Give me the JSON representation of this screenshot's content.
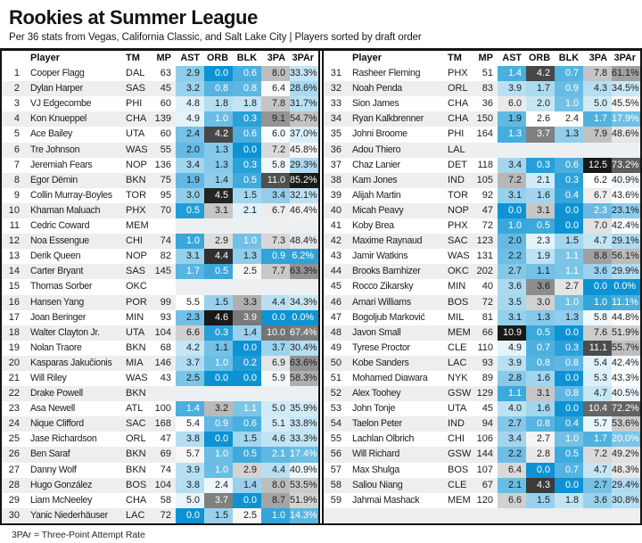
{
  "chart_data": {
    "type": "table",
    "title": "Rookies at Summer League",
    "subtitle": "Per 36 stats from Vegas, California Classic, and Salt Lake City | Players sorted by draft order",
    "footnote": "3PAr = Three-Point Attempt Rate",
    "columns": [
      "Player",
      "TM",
      "MP",
      "AST",
      "ORB",
      "BLK",
      "3PA",
      "3PAr"
    ],
    "rows_per_panel": 30,
    "players": [
      [
        1,
        "Cooper Flagg",
        "DAL",
        63,
        2.9,
        0.0,
        0.6,
        8.0,
        33.3
      ],
      [
        2,
        "Dylan Harper",
        "SAS",
        45,
        3.2,
        0.8,
        0.8,
        6.4,
        28.6
      ],
      [
        3,
        "VJ Edgecombe",
        "PHI",
        60,
        4.8,
        1.8,
        1.8,
        7.8,
        31.7
      ],
      [
        4,
        "Kon Knueppel",
        "CHA",
        139,
        4.9,
        1.0,
        0.3,
        9.1,
        54.7
      ],
      [
        5,
        "Ace Bailey",
        "UTA",
        60,
        2.4,
        4.2,
        0.6,
        6.0,
        37.0
      ],
      [
        6,
        "Tre Johnson",
        "WAS",
        55,
        2.0,
        1.3,
        0.0,
        7.2,
        45.8
      ],
      [
        7,
        "Jeremiah Fears",
        "NOP",
        136,
        3.4,
        1.3,
        0.3,
        5.8,
        29.3
      ],
      [
        8,
        "Egor Dëmin",
        "BKN",
        75,
        1.9,
        1.4,
        0.5,
        11.0,
        85.2
      ],
      [
        9,
        "Collin Murray-Boyles",
        "TOR",
        95,
        3.0,
        4.5,
        1.5,
        3.4,
        32.1
      ],
      [
        10,
        "Khaman Maluach",
        "PHX",
        70,
        0.5,
        3.1,
        2.1,
        6.7,
        46.4
      ],
      [
        11,
        "Cedric Coward",
        "MEM",
        null,
        null,
        null,
        null,
        null,
        null
      ],
      [
        12,
        "Noa Essengue",
        "CHI",
        74,
        1.0,
        2.9,
        1.0,
        7.3,
        48.4
      ],
      [
        13,
        "Derik Queen",
        "NOP",
        82,
        3.1,
        4.4,
        1.3,
        0.9,
        6.2
      ],
      [
        14,
        "Carter Bryant",
        "SAS",
        145,
        1.7,
        0.5,
        2.5,
        7.7,
        63.3
      ],
      [
        15,
        "Thomas Sorber",
        "OKC",
        null,
        null,
        null,
        null,
        null,
        null
      ],
      [
        16,
        "Hansen Yang",
        "POR",
        99,
        5.5,
        1.5,
        3.3,
        4.4,
        34.3
      ],
      [
        17,
        "Joan Beringer",
        "MIN",
        93,
        2.3,
        4.6,
        3.9,
        0.0,
        0.0
      ],
      [
        18,
        "Walter Clayton Jr.",
        "UTA",
        104,
        6.6,
        0.3,
        1.4,
        10.0,
        67.4
      ],
      [
        19,
        "Nolan Traore",
        "BKN",
        68,
        4.2,
        1.1,
        0.0,
        3.7,
        30.4
      ],
      [
        20,
        "Kasparas Jakučionis",
        "MIA",
        146,
        3.7,
        1.0,
        0.2,
        6.9,
        63.6
      ],
      [
        21,
        "Will Riley",
        "WAS",
        43,
        2.5,
        0.0,
        0.0,
        5.9,
        58.3
      ],
      [
        22,
        "Drake Powell",
        "BKN",
        null,
        null,
        null,
        null,
        null,
        null
      ],
      [
        23,
        "Asa Newell",
        "ATL",
        100,
        1.4,
        3.2,
        1.1,
        5.0,
        35.9
      ],
      [
        24,
        "Nique Clifford",
        "SAC",
        168,
        5.4,
        0.9,
        0.6,
        5.1,
        33.8
      ],
      [
        25,
        "Jase Richardson",
        "ORL",
        47,
        3.8,
        0.0,
        1.5,
        4.6,
        33.3
      ],
      [
        26,
        "Ben Saraf",
        "BKN",
        69,
        5.7,
        1.0,
        0.5,
        2.1,
        17.4
      ],
      [
        27,
        "Danny Wolf",
        "BKN",
        74,
        3.9,
        1.0,
        2.9,
        4.4,
        40.9
      ],
      [
        28,
        "Hugo González",
        "BOS",
        104,
        3.8,
        2.4,
        1.4,
        8.0,
        53.5
      ],
      [
        29,
        "Liam McNeeley",
        "CHA",
        58,
        5.0,
        3.7,
        0.0,
        8.7,
        51.9
      ],
      [
        30,
        "Yanic Niederhäuser",
        "LAC",
        72,
        0.0,
        1.5,
        2.5,
        1.0,
        14.3
      ],
      [
        31,
        "Rasheer Fleming",
        "PHX",
        51,
        1.4,
        4.2,
        0.7,
        7.8,
        61.1
      ],
      [
        32,
        "Noah Penda",
        "ORL",
        83,
        3.9,
        1.7,
        0.9,
        4.3,
        34.5
      ],
      [
        33,
        "Sion James",
        "CHA",
        36,
        6.0,
        2.0,
        1.0,
        5.0,
        45.5
      ],
      [
        34,
        "Ryan Kalkbrenner",
        "CHA",
        150,
        1.9,
        2.6,
        2.4,
        1.7,
        17.9
      ],
      [
        35,
        "Johni Broome",
        "PHI",
        164,
        1.3,
        3.7,
        1.3,
        7.9,
        48.6
      ],
      [
        36,
        "Adou Thiero",
        "LAL",
        null,
        null,
        null,
        null,
        null,
        null
      ],
      [
        37,
        "Chaz Lanier",
        "DET",
        118,
        3.4,
        0.3,
        0.6,
        12.5,
        73.2
      ],
      [
        38,
        "Kam Jones",
        "IND",
        105,
        7.2,
        2.1,
        0.3,
        6.2,
        40.9
      ],
      [
        39,
        "Alijah Martin",
        "TOR",
        92,
        3.1,
        1.6,
        0.4,
        6.7,
        43.6
      ],
      [
        40,
        "Micah Peavy",
        "NOP",
        47,
        0.0,
        3.1,
        0.0,
        2.3,
        23.1
      ],
      [
        41,
        "Koby Brea",
        "PHX",
        72,
        1.0,
        0.5,
        0.0,
        7.0,
        42.4
      ],
      [
        42,
        "Maxime Raynaud",
        "SAC",
        123,
        2.0,
        2.3,
        1.5,
        4.7,
        29.1
      ],
      [
        43,
        "Jamir Watkins",
        "WAS",
        131,
        2.2,
        1.9,
        1.1,
        8.8,
        56.1
      ],
      [
        44,
        "Brooks Barnhizer",
        "OKC",
        202,
        2.7,
        1.1,
        1.1,
        3.6,
        29.9
      ],
      [
        45,
        "Rocco Zikarsky",
        "MIN",
        40,
        3.6,
        3.6,
        2.7,
        0.0,
        0.0
      ],
      [
        46,
        "Amari Williams",
        "BOS",
        72,
        3.5,
        3.0,
        1.0,
        1.0,
        11.1
      ],
      [
        47,
        "Bogoljub Marković",
        "MIL",
        81,
        3.1,
        1.3,
        1.3,
        5.8,
        44.8
      ],
      [
        48,
        "Javon Small",
        "MEM",
        66,
        10.9,
        0.5,
        0.0,
        7.6,
        51.9
      ],
      [
        49,
        "Tyrese Proctor",
        "CLE",
        110,
        4.9,
        0.7,
        0.3,
        11.1,
        55.7
      ],
      [
        50,
        "Kobe Sanders",
        "LAC",
        93,
        3.9,
        0.8,
        0.8,
        5.4,
        42.4
      ],
      [
        51,
        "Mohamed Diawara",
        "NYK",
        89,
        2.8,
        1.6,
        0.0,
        5.3,
        43.3
      ],
      [
        52,
        "Alex Toohey",
        "GSW",
        129,
        1.1,
        3.1,
        0.8,
        4.7,
        40.5
      ],
      [
        53,
        "John Tonje",
        "UTA",
        45,
        4.0,
        1.6,
        0.0,
        10.4,
        72.2
      ],
      [
        54,
        "Taelon Peter",
        "IND",
        94,
        2.7,
        0.8,
        0.4,
        5.7,
        53.6
      ],
      [
        55,
        "Lachlan Olbrich",
        "CHI",
        106,
        3.4,
        2.7,
        1.0,
        1.7,
        20.0
      ],
      [
        56,
        "Will Richard",
        "GSW",
        144,
        2.2,
        2.8,
        0.5,
        7.2,
        49.2
      ],
      [
        57,
        "Max Shulga",
        "BOS",
        107,
        6.4,
        0.0,
        0.7,
        4.7,
        48.3
      ],
      [
        58,
        "Saliou Niang",
        "CLE",
        67,
        2.1,
        4.3,
        0.0,
        2.7,
        29.4
      ],
      [
        59,
        "Jahmai Mashack",
        "MEM",
        120,
        6.6,
        1.5,
        1.8,
        3.6,
        30.8
      ]
    ],
    "heatmap_scale": {
      "ast": {
        "min": 0,
        "mid": 5.5,
        "max": 10.9,
        "white_text_below_t": 0.32
      },
      "orb": {
        "min": 0,
        "mid": 2.6,
        "max": 4.6,
        "white_text_below_t": 0.41
      },
      "blk": {
        "min": 0,
        "mid": 2.4,
        "max": 5.0,
        "white_text_below_t": 0.48
      },
      "pa3": {
        "min": 0,
        "mid": 6.2,
        "max": 12.5,
        "white_text_below_t": 0.4
      },
      "par3": {
        "min": 0,
        "mid": 44,
        "max": 85.2,
        "white_text_below_t": 0.46
      },
      "gray_white_text_above_t": 0.52
    },
    "colors": {
      "low_blue": "#0d93d3",
      "high_black": "#191919",
      "mid_white": "#ffffff",
      "row_stripe": "#eeeeee",
      "missing_band": "#edf0f2",
      "rule_black": "#141414",
      "text_dark": "#1d1d1d",
      "text_light": "#ffffff"
    }
  }
}
